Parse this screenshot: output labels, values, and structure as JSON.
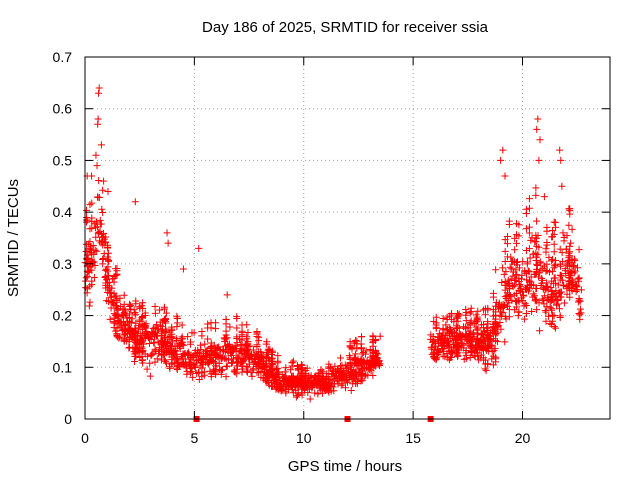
{
  "chart_data": {
    "type": "scatter",
    "title": "Day 186 of 2025, SRMTID for receiver ssia",
    "xlabel": "GPS time / hours",
    "ylabel": "SRMTID / TECUs",
    "xlim": [
      0,
      24
    ],
    "ylim": [
      0,
      0.7
    ],
    "xticks": [
      0,
      5,
      10,
      15,
      20
    ],
    "yticks": [
      0,
      0.1,
      0.2,
      0.3,
      0.4,
      0.5,
      0.6,
      0.7
    ],
    "xtick_labels": [
      "0",
      "5",
      "10",
      "15",
      "20"
    ],
    "ytick_labels": [
      "0",
      "0.1",
      "0.2",
      "0.3",
      "0.4",
      "0.5",
      "0.6",
      "0.7"
    ],
    "grid": true,
    "marker": "plus",
    "color": "#ff0000",
    "gap_hours": [
      13.5,
      15.8
    ],
    "envelope": {
      "x": [
        0,
        0.3,
        0.6,
        0.8,
        1.0,
        1.5,
        2.0,
        2.5,
        3.0,
        3.5,
        4.0,
        5.0,
        6.0,
        7.0,
        8.0,
        9.0,
        9.5,
        10.0,
        11.0,
        12.0,
        12.5,
        13.0,
        13.5,
        15.8,
        16.5,
        17.0,
        18.0,
        18.5,
        19.0,
        19.3,
        19.6,
        20.0,
        20.5,
        21.0,
        21.5,
        22.0,
        22.5,
        22.7
      ],
      "center": [
        0.28,
        0.3,
        0.4,
        0.34,
        0.26,
        0.2,
        0.17,
        0.15,
        0.16,
        0.15,
        0.13,
        0.12,
        0.12,
        0.13,
        0.11,
        0.07,
        0.07,
        0.065,
        0.07,
        0.09,
        0.1,
        0.11,
        0.12,
        0.14,
        0.15,
        0.15,
        0.15,
        0.14,
        0.2,
        0.26,
        0.27,
        0.25,
        0.3,
        0.26,
        0.24,
        0.3,
        0.26,
        0.22
      ],
      "spread": [
        0.08,
        0.1,
        0.11,
        0.08,
        0.07,
        0.06,
        0.05,
        0.05,
        0.08,
        0.05,
        0.05,
        0.05,
        0.05,
        0.05,
        0.04,
        0.03,
        0.03,
        0.03,
        0.03,
        0.04,
        0.04,
        0.04,
        0.04,
        0.04,
        0.04,
        0.04,
        0.05,
        0.06,
        0.1,
        0.09,
        0.08,
        0.09,
        0.12,
        0.1,
        0.1,
        0.09,
        0.07,
        0.06
      ]
    },
    "spikes": [
      {
        "x": 0.65,
        "y": 0.64
      },
      {
        "x": 0.62,
        "y": 0.63
      },
      {
        "x": 0.6,
        "y": 0.58
      },
      {
        "x": 0.58,
        "y": 0.57
      },
      {
        "x": 0.75,
        "y": 0.53
      },
      {
        "x": 0.5,
        "y": 0.51
      },
      {
        "x": 0.55,
        "y": 0.49
      },
      {
        "x": 0.3,
        "y": 0.47
      },
      {
        "x": 0.1,
        "y": 0.47
      },
      {
        "x": 0.85,
        "y": 0.46
      },
      {
        "x": 1.05,
        "y": 0.44
      },
      {
        "x": 2.3,
        "y": 0.42
      },
      {
        "x": 3.75,
        "y": 0.36
      },
      {
        "x": 3.8,
        "y": 0.34
      },
      {
        "x": 4.5,
        "y": 0.29
      },
      {
        "x": 5.2,
        "y": 0.33
      },
      {
        "x": 6.5,
        "y": 0.24
      },
      {
        "x": 19.1,
        "y": 0.52
      },
      {
        "x": 19.0,
        "y": 0.5
      },
      {
        "x": 19.2,
        "y": 0.47
      },
      {
        "x": 20.7,
        "y": 0.58
      },
      {
        "x": 20.65,
        "y": 0.56
      },
      {
        "x": 20.8,
        "y": 0.54
      },
      {
        "x": 20.75,
        "y": 0.5
      },
      {
        "x": 21.0,
        "y": 0.43
      },
      {
        "x": 21.7,
        "y": 0.52
      },
      {
        "x": 21.75,
        "y": 0.5
      },
      {
        "x": 21.8,
        "y": 0.45
      },
      {
        "x": 21.5,
        "y": 0.38
      },
      {
        "x": 22.2,
        "y": 0.34
      }
    ],
    "zero_markers": [
      {
        "x": 5.1,
        "y": 0
      },
      {
        "x": 12.0,
        "y": 0
      },
      {
        "x": 15.8,
        "y": 0
      }
    ]
  }
}
